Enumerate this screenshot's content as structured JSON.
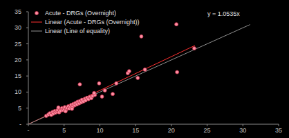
{
  "chart_data": {
    "type": "scatter",
    "xlim": [
      0,
      35
    ],
    "ylim": [
      0,
      35
    ],
    "xticks": [
      {
        "value": 0,
        "label": "-"
      },
      5,
      10,
      15,
      20,
      25,
      30,
      35
    ],
    "yticks": [
      {
        "value": 0,
        "label": "-"
      },
      5,
      10,
      15,
      20,
      25,
      30,
      35
    ],
    "grid": false,
    "legend": "upper left",
    "annotation": "y = 1.0535x",
    "series": [
      {
        "name": "Acute - DRGs (Overnight)",
        "type": "scatter",
        "marker": "circle",
        "color": "#ff8fa3",
        "x": [
          2.5,
          2.8,
          3.0,
          3.2,
          3.4,
          3.5,
          3.7,
          3.8,
          4.0,
          4.1,
          4.3,
          4.4,
          4.5,
          4.7,
          4.8,
          5.0,
          5.1,
          5.3,
          5.4,
          5.6,
          5.7,
          5.9,
          6.0,
          6.2,
          6.3,
          6.5,
          6.6,
          6.8,
          6.9,
          7.1,
          7.2,
          7.4,
          7.5,
          7.7,
          7.9,
          8.0,
          8.2,
          8.4,
          8.6,
          8.8,
          9.0,
          9.3,
          7.2,
          9.2,
          9.9,
          10.3,
          10.7,
          11.8,
          12.3,
          13.9,
          14.1,
          15.3,
          16.3,
          15.8,
          20.7,
          20.8,
          23.2,
          4.2,
          5.2,
          6.1
        ],
        "values": [
          2.6,
          3.0,
          3.4,
          2.9,
          3.8,
          3.3,
          4.1,
          3.6,
          3.9,
          4.4,
          3.7,
          4.6,
          4.2,
          5.0,
          4.4,
          4.8,
          5.3,
          4.6,
          5.1,
          5.6,
          4.9,
          5.4,
          6.0,
          5.5,
          6.3,
          5.9,
          6.6,
          6.2,
          7.0,
          6.5,
          7.2,
          6.8,
          7.6,
          7.1,
          7.9,
          7.4,
          8.2,
          7.8,
          8.5,
          8.1,
          8.8,
          9.1,
          12.4,
          9.7,
          12.7,
          8.6,
          10.5,
          9.4,
          12.7,
          15.9,
          16.5,
          14.4,
          17.0,
          27.3,
          31.1,
          16.2,
          23.6,
          5.2,
          4.0,
          4.8
        ]
      },
      {
        "name": "Linear (Acute - DRGs (Overnight))",
        "type": "line",
        "line_style": "solid",
        "color": "#ff3030",
        "x": [
          0,
          23.3
        ],
        "values": [
          0,
          24.5
        ]
      },
      {
        "name": "Linear (Line of equality)",
        "type": "line",
        "line_style": "solid",
        "color": "#909090",
        "x": [
          0,
          31
        ],
        "values": [
          0,
          31
        ]
      }
    ]
  }
}
